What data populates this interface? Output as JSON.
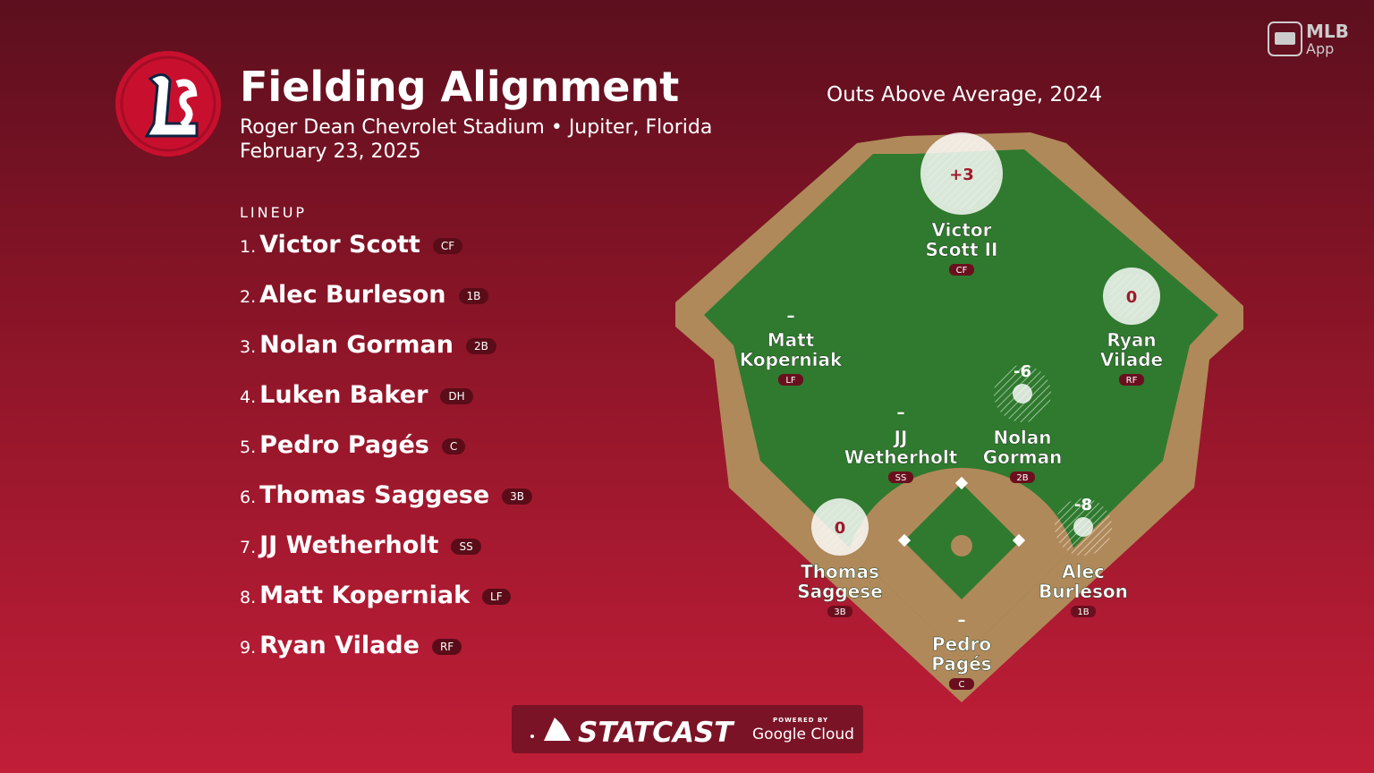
{
  "header": {
    "title": "Fielding Alignment",
    "venue": "Roger Dean Chevrolet Stadium • Jupiter, Florida",
    "date": "February 23, 2025"
  },
  "lineup": {
    "label": "LINEUP",
    "players": [
      {
        "order": "1.",
        "name": "Victor Scott",
        "pos": "CF"
      },
      {
        "order": "2.",
        "name": "Alec Burleson",
        "pos": "1B"
      },
      {
        "order": "3.",
        "name": "Nolan Gorman",
        "pos": "2B"
      },
      {
        "order": "4.",
        "name": "Luken Baker",
        "pos": "DH"
      },
      {
        "order": "5.",
        "name": "Pedro Pagés",
        "pos": "C"
      },
      {
        "order": "6.",
        "name": "Thomas Saggese",
        "pos": "3B"
      },
      {
        "order": "7.",
        "name": "JJ Wetherholt",
        "pos": "SS"
      },
      {
        "order": "8.",
        "name": "Matt Koperniak",
        "pos": "LF"
      },
      {
        "order": "9.",
        "name": "Ryan Vilade",
        "pos": "RF"
      }
    ]
  },
  "field": {
    "title": "Outs Above Average, 2024",
    "fielders": [
      {
        "name": [
          "Victor",
          "Scott II"
        ],
        "pos": "CF",
        "oaa": "+3"
      },
      {
        "name": [
          "Ryan",
          "Vilade"
        ],
        "pos": "RF",
        "oaa": "0"
      },
      {
        "name": [
          "Matt",
          "Koperniak"
        ],
        "pos": "LF",
        "oaa": "–"
      },
      {
        "name": [
          "Nolan",
          "Gorman"
        ],
        "pos": "2B",
        "oaa": "-6"
      },
      {
        "name": [
          "JJ",
          "Wetherholt"
        ],
        "pos": "SS",
        "oaa": "–"
      },
      {
        "name": [
          "Thomas",
          "Saggese"
        ],
        "pos": "3B",
        "oaa": "0"
      },
      {
        "name": [
          "Alec",
          "Burleson"
        ],
        "pos": "1B",
        "oaa": "-8"
      },
      {
        "name": [
          "Pedro",
          "Pagés"
        ],
        "pos": "C",
        "oaa": "–"
      }
    ]
  },
  "app": {
    "brand": "MLB",
    "product": "App"
  },
  "footer": {
    "brand": "STATCAST",
    "powered": "POWERED BY",
    "partner": "Google Cloud"
  }
}
